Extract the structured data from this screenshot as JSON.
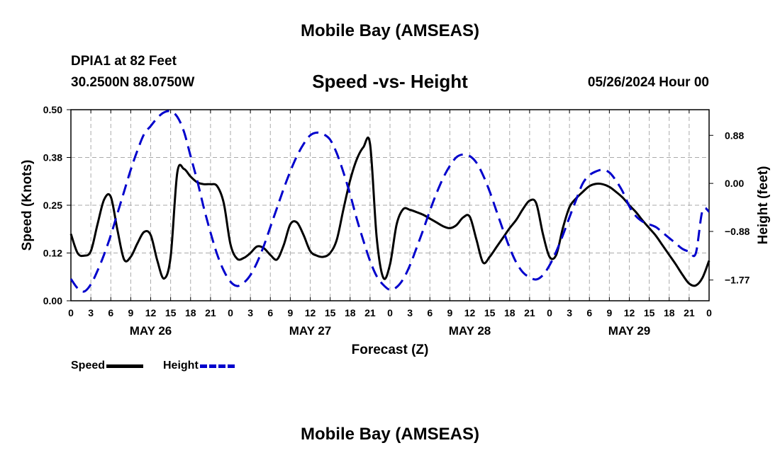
{
  "header": {
    "title": "Mobile Bay (AMSEAS)",
    "station": "DPIA1 at 82 Feet",
    "coords": "30.2500N  88.0750W",
    "subtitle": "Speed -vs- Height",
    "datetime": "05/26/2024 Hour 00"
  },
  "footer": {
    "title": "Mobile Bay (AMSEAS)"
  },
  "legend": {
    "speed_label": "Speed",
    "height_label": "Height"
  },
  "colors": {
    "speed": "#000000",
    "height": "#0000cc",
    "grid": "#aaaaaa"
  },
  "chart_data": {
    "type": "line",
    "title": "Speed -vs- Height",
    "xlabel": "Forecast (Z)",
    "ylabel": "Speed (Knots)",
    "y2label": "Height (feet)",
    "xlim": [
      0,
      96
    ],
    "ylim": [
      0,
      0.5
    ],
    "y2lim": [
      -2.15,
      1.35
    ],
    "grid": true,
    "legend_position": "bottom-left",
    "x_tick_labels": [
      "0",
      "3",
      "6",
      "9",
      "12",
      "15",
      "18",
      "21",
      "0",
      "3",
      "6",
      "9",
      "12",
      "15",
      "18",
      "21",
      "0",
      "3",
      "6",
      "9",
      "12",
      "15",
      "18",
      "21",
      "0",
      "3",
      "6",
      "9",
      "12",
      "15",
      "18",
      "21",
      "0"
    ],
    "y_ticks": [
      {
        "value": 0.0,
        "label": "0.00"
      },
      {
        "value": 0.125,
        "label": "0.12"
      },
      {
        "value": 0.25,
        "label": "0.25"
      },
      {
        "value": 0.375,
        "label": "0.38"
      },
      {
        "value": 0.5,
        "label": "0.50"
      }
    ],
    "y2_ticks": [
      {
        "value": 0.88,
        "label": "0.88"
      },
      {
        "value": 0.0,
        "label": "0.00"
      },
      {
        "value": -0.88,
        "label": "−0.88"
      },
      {
        "value": -1.77,
        "label": "−1.77"
      }
    ],
    "day_labels": [
      {
        "x": 12,
        "label": "MAY 26"
      },
      {
        "x": 36,
        "label": "MAY 27"
      },
      {
        "x": 60,
        "label": "MAY 28"
      },
      {
        "x": 84,
        "label": "MAY 29"
      }
    ],
    "series": [
      {
        "name": "Speed",
        "axis": "left",
        "x": [
          0,
          1,
          2,
          3,
          4,
          5,
          6,
          7,
          8,
          9,
          10,
          11,
          12,
          13,
          14,
          15,
          16,
          17,
          18,
          19,
          20,
          21,
          22,
          23,
          24,
          25,
          26,
          27,
          28,
          29,
          30,
          31,
          32,
          33,
          34,
          35,
          36,
          37,
          38,
          39,
          40,
          41,
          42,
          43,
          44,
          45,
          46,
          47,
          48,
          49,
          50,
          51,
          52,
          53,
          54,
          55,
          56,
          57,
          58,
          59,
          60,
          61,
          62,
          63,
          64,
          65,
          66,
          67,
          68,
          69,
          70,
          71,
          72,
          73,
          74,
          75,
          76,
          77,
          78,
          79,
          80,
          81,
          82,
          83,
          84,
          85,
          86,
          87,
          88,
          89,
          90,
          91,
          92,
          93,
          94,
          95,
          96
        ],
        "values": [
          0.175,
          0.125,
          0.118,
          0.13,
          0.2,
          0.265,
          0.272,
          0.185,
          0.108,
          0.115,
          0.15,
          0.18,
          0.172,
          0.105,
          0.058,
          0.115,
          0.335,
          0.345,
          0.325,
          0.31,
          0.305,
          0.305,
          0.3,
          0.255,
          0.148,
          0.11,
          0.112,
          0.125,
          0.142,
          0.138,
          0.12,
          0.108,
          0.145,
          0.2,
          0.205,
          0.172,
          0.13,
          0.118,
          0.115,
          0.125,
          0.16,
          0.24,
          0.315,
          0.37,
          0.402,
          0.41,
          0.165,
          0.06,
          0.095,
          0.2,
          0.24,
          0.238,
          0.232,
          0.225,
          0.215,
          0.205,
          0.195,
          0.19,
          0.198,
          0.218,
          0.22,
          0.16,
          0.1,
          0.115,
          0.14,
          0.165,
          0.19,
          0.212,
          0.24,
          0.262,
          0.255,
          0.175,
          0.115,
          0.12,
          0.19,
          0.245,
          0.268,
          0.285,
          0.3,
          0.306,
          0.305,
          0.298,
          0.285,
          0.27,
          0.25,
          0.232,
          0.21,
          0.19,
          0.17,
          0.145,
          0.12,
          0.095,
          0.068,
          0.045,
          0.04,
          0.06,
          0.105
        ]
      },
      {
        "name": "Height",
        "axis": "right",
        "x": [
          0,
          1,
          2,
          3,
          4,
          5,
          6,
          7,
          8,
          9,
          10,
          11,
          12,
          13,
          14,
          15,
          16,
          17,
          18,
          19,
          20,
          21,
          22,
          23,
          24,
          25,
          26,
          27,
          28,
          29,
          30,
          31,
          32,
          33,
          34,
          35,
          36,
          37,
          38,
          39,
          40,
          41,
          42,
          43,
          44,
          45,
          46,
          47,
          48,
          49,
          50,
          51,
          52,
          53,
          54,
          55,
          56,
          57,
          58,
          59,
          60,
          61,
          62,
          63,
          64,
          65,
          66,
          67,
          68,
          69,
          70,
          71,
          72,
          73,
          74,
          75,
          76,
          77,
          78,
          79,
          80,
          81,
          82,
          83,
          84,
          85,
          86,
          87,
          88,
          89,
          90,
          91,
          92,
          93,
          94,
          95,
          96
        ],
        "values": [
          -1.75,
          -1.92,
          -1.98,
          -1.85,
          -1.6,
          -1.3,
          -0.95,
          -0.55,
          -0.15,
          0.25,
          0.6,
          0.9,
          1.05,
          1.2,
          1.3,
          1.32,
          1.22,
          0.95,
          0.5,
          0.05,
          -0.45,
          -0.9,
          -1.3,
          -1.6,
          -1.8,
          -1.88,
          -1.82,
          -1.68,
          -1.45,
          -1.15,
          -0.8,
          -0.45,
          -0.1,
          0.22,
          0.5,
          0.72,
          0.88,
          0.93,
          0.9,
          0.8,
          0.55,
          0.2,
          -0.2,
          -0.65,
          -1.05,
          -1.42,
          -1.7,
          -1.86,
          -1.95,
          -1.9,
          -1.75,
          -1.5,
          -1.18,
          -0.85,
          -0.5,
          -0.18,
          0.1,
          0.32,
          0.48,
          0.53,
          0.5,
          0.38,
          0.15,
          -0.15,
          -0.5,
          -0.85,
          -1.18,
          -1.45,
          -1.63,
          -1.72,
          -1.76,
          -1.68,
          -1.5,
          -1.25,
          -0.95,
          -0.62,
          -0.3,
          0.0,
          0.15,
          0.22,
          0.25,
          0.2,
          0.05,
          -0.15,
          -0.42,
          -0.6,
          -0.7,
          -0.75,
          -0.8,
          -0.9,
          -1.0,
          -1.1,
          -1.2,
          -1.25,
          -1.28,
          -0.5,
          -0.52
        ]
      }
    ]
  }
}
